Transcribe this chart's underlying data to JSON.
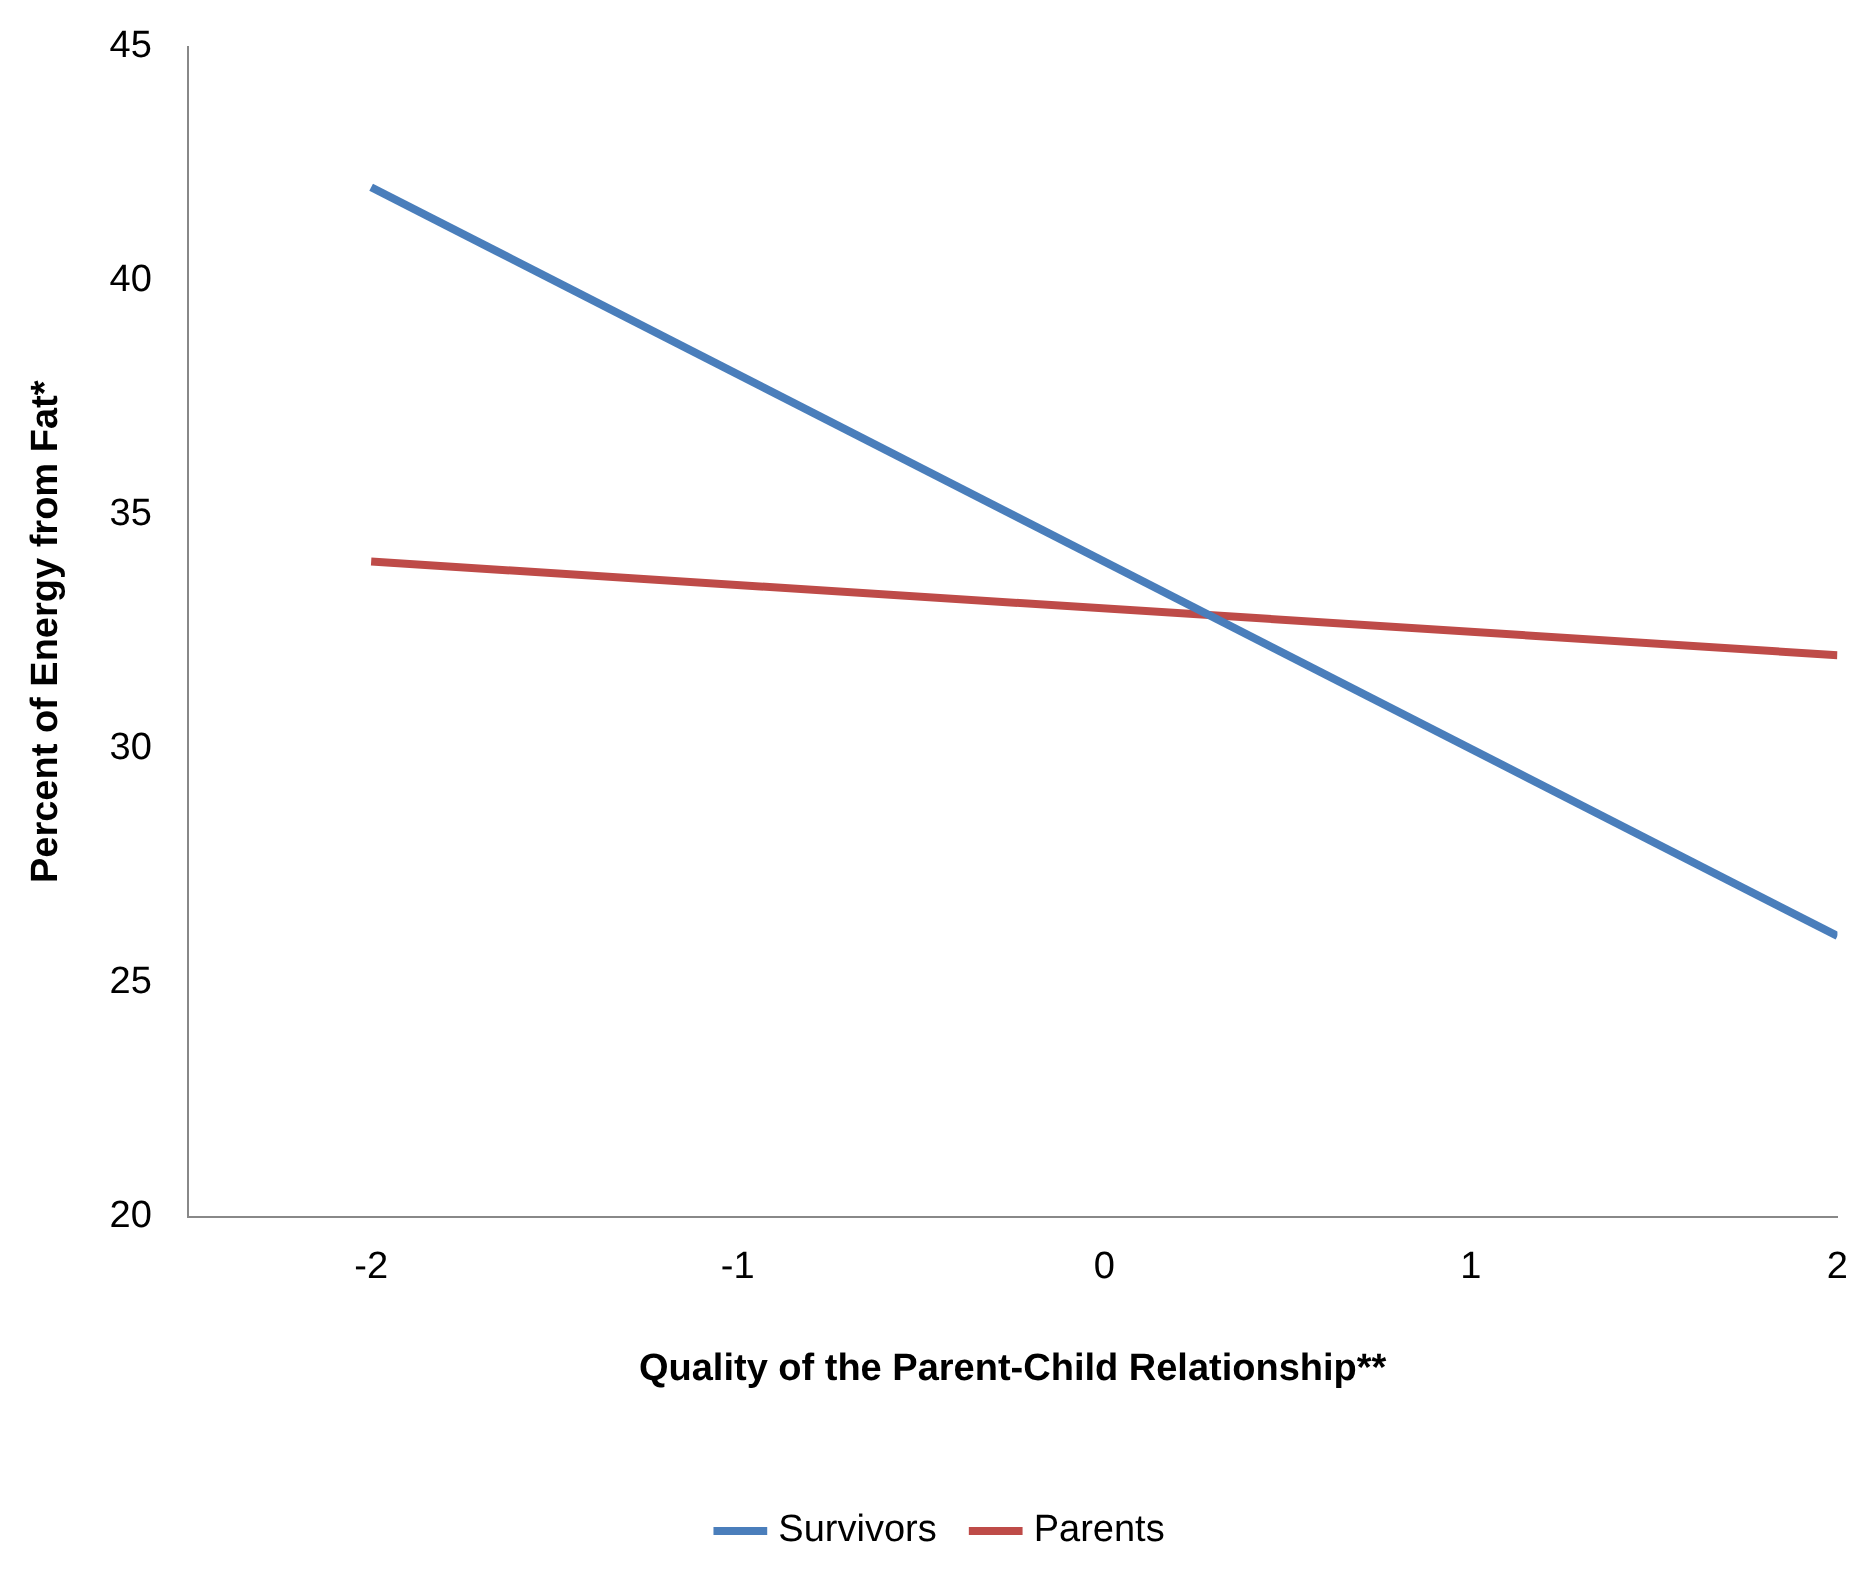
{
  "chart_data": {
    "type": "line",
    "xlabel": "Quality of the Parent-Child Relationship**",
    "ylabel": "Percent of Energy from Fat*",
    "x": [
      -2,
      2
    ],
    "series": [
      {
        "name": "Survivors",
        "color": "#4a7ebb",
        "values": [
          42,
          26
        ]
      },
      {
        "name": "Parents",
        "color": "#be4b48",
        "values": [
          34,
          32
        ]
      }
    ],
    "xlim": [
      -2.5,
      2
    ],
    "xticks": [
      -2,
      -1,
      0,
      1,
      2
    ],
    "ylim": [
      20,
      45
    ],
    "yticks": [
      20,
      25,
      30,
      35,
      40,
      45
    ],
    "legend": "bottom",
    "marker": "none",
    "line_style": "solid"
  }
}
